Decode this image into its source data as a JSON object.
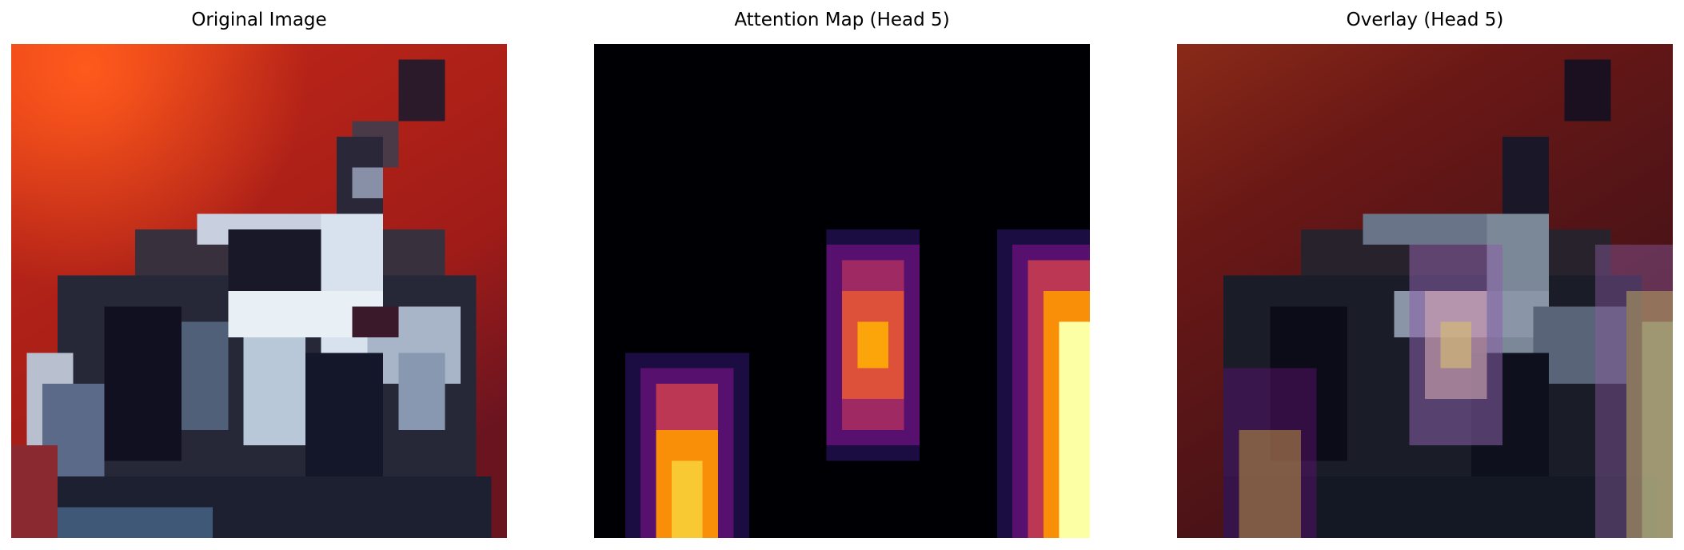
{
  "figure": {
    "panels": [
      {
        "id": "original",
        "title": "Original Image"
      },
      {
        "id": "attention",
        "title": "Attention Map (Head 5)"
      },
      {
        "id": "overlay",
        "title": "Overlay (Head 5)"
      }
    ]
  },
  "colors": {
    "background_red": "#a82018",
    "bright_orange": "#f0501c",
    "dark_navy": "#141628",
    "steel_gray": "#7888a0",
    "white_silver": "#dce4f0",
    "inferno_black": "#000004",
    "inferno_purple": "#57106e",
    "inferno_magenta": "#bc3754",
    "inferno_orange": "#f98e09",
    "inferno_yellow": "#fcffa4"
  }
}
